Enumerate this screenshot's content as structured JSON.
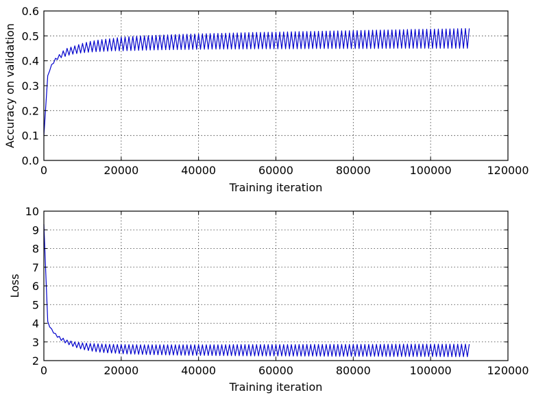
{
  "chart_data": [
    {
      "type": "line",
      "title": "",
      "xlabel": "Training iteration",
      "ylabel": "Accuracy on validation",
      "xlim": [
        0,
        120000
      ],
      "ylim": [
        0.0,
        0.6
      ],
      "xticks": [
        0,
        20000,
        40000,
        60000,
        80000,
        100000,
        120000
      ],
      "xtick_labels": [
        "0",
        "20000",
        "40000",
        "60000",
        "80000",
        "100000",
        "120000"
      ],
      "yticks": [
        0.0,
        0.1,
        0.2,
        0.3,
        0.4,
        0.5,
        0.6
      ],
      "ytick_labels": [
        "0.0",
        "0.1",
        "0.2",
        "0.3",
        "0.4",
        "0.5",
        "0.6"
      ],
      "grid": true,
      "series_color": "#0000cc",
      "series": [
        {
          "x": [
            0,
            1000,
            2000,
            3000,
            4000,
            5000,
            6000,
            7000,
            8000,
            9000,
            10000,
            12000,
            14000,
            16000,
            18000,
            20000,
            25000,
            30000,
            35000,
            40000,
            45000,
            50000,
            55000,
            60000,
            65000,
            70000,
            75000,
            80000,
            85000,
            90000,
            95000,
            100000,
            105000,
            110000
          ],
          "upper": [
            0.1,
            0.34,
            0.385,
            0.41,
            0.425,
            0.44,
            0.45,
            0.455,
            0.46,
            0.465,
            0.47,
            0.478,
            0.483,
            0.487,
            0.49,
            0.495,
            0.5,
            0.503,
            0.506,
            0.508,
            0.51,
            0.512,
            0.514,
            0.515,
            0.517,
            0.518,
            0.52,
            0.521,
            0.523,
            0.524,
            0.526,
            0.527,
            0.528,
            0.53
          ],
          "lower": [
            0.1,
            0.34,
            0.38,
            0.4,
            0.41,
            0.415,
            0.42,
            0.425,
            0.428,
            0.43,
            0.432,
            0.435,
            0.437,
            0.438,
            0.44,
            0.44,
            0.442,
            0.444,
            0.445,
            0.446,
            0.447,
            0.447,
            0.448,
            0.448,
            0.448,
            0.449,
            0.449,
            0.449,
            0.449,
            0.45,
            0.45,
            0.45,
            0.45,
            0.45
          ],
          "cycle_period": 1000
        }
      ]
    },
    {
      "type": "line",
      "title": "",
      "xlabel": "Training iteration",
      "ylabel": "Loss",
      "xlim": [
        0,
        120000
      ],
      "ylim": [
        2,
        10
      ],
      "xticks": [
        0,
        20000,
        40000,
        60000,
        80000,
        100000,
        120000
      ],
      "xtick_labels": [
        "0",
        "20000",
        "40000",
        "60000",
        "80000",
        "100000",
        "120000"
      ],
      "yticks": [
        2,
        3,
        4,
        5,
        6,
        7,
        8,
        9,
        10
      ],
      "ytick_labels": [
        "2",
        "3",
        "4",
        "5",
        "6",
        "7",
        "8",
        "9",
        "10"
      ],
      "grid": true,
      "series_color": "#0000cc",
      "series": [
        {
          "x": [
            0,
            1000,
            2000,
            3000,
            4000,
            5000,
            6000,
            7000,
            8000,
            9000,
            10000,
            12000,
            14000,
            16000,
            18000,
            20000,
            25000,
            30000,
            35000,
            40000,
            45000,
            50000,
            55000,
            60000,
            65000,
            70000,
            75000,
            80000,
            85000,
            90000,
            95000,
            100000,
            105000,
            110000
          ],
          "upper": [
            9.3,
            4.1,
            3.7,
            3.45,
            3.3,
            3.2,
            3.1,
            3.05,
            3.0,
            2.98,
            2.95,
            2.92,
            2.9,
            2.88,
            2.87,
            2.86,
            2.85,
            2.85,
            2.85,
            2.85,
            2.85,
            2.86,
            2.86,
            2.86,
            2.86,
            2.87,
            2.87,
            2.87,
            2.87,
            2.88,
            2.88,
            2.88,
            2.88,
            2.88
          ],
          "lower": [
            9.3,
            4.0,
            3.6,
            3.35,
            3.15,
            3.0,
            2.9,
            2.8,
            2.72,
            2.66,
            2.6,
            2.52,
            2.46,
            2.42,
            2.4,
            2.37,
            2.33,
            2.31,
            2.29,
            2.28,
            2.27,
            2.26,
            2.25,
            2.25,
            2.24,
            2.24,
            2.23,
            2.23,
            2.23,
            2.22,
            2.22,
            2.22,
            2.21,
            2.21
          ],
          "cycle_period": 1000
        }
      ]
    }
  ]
}
